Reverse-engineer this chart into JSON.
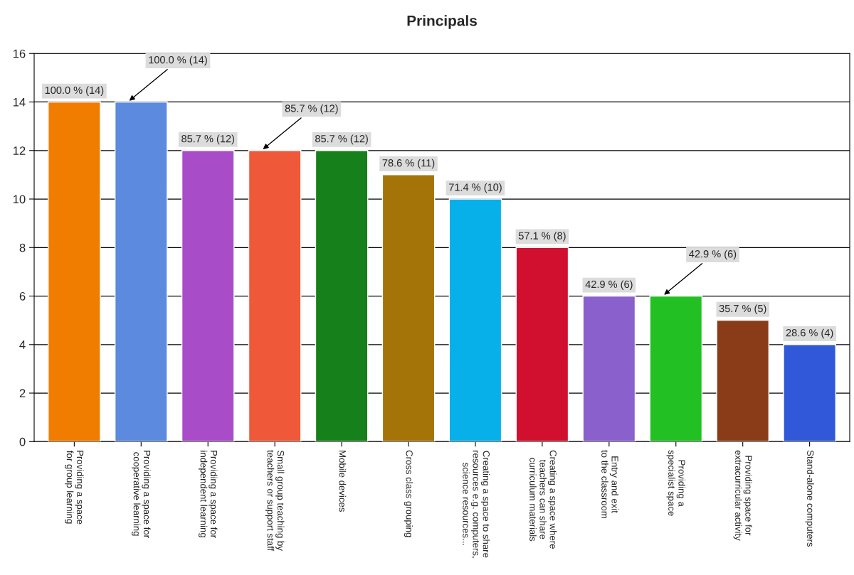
{
  "chart_data": {
    "type": "bar",
    "title": "Principals",
    "categories": [
      "Providing a space\nfor group learning",
      "Providing a space for\ncooperative learning",
      "Providing a space for\nindependent learning",
      "Small group teaching by\nteachers or support staff",
      "Mobile devices",
      "Cross class grouping",
      "Creating a space to share\nresources e.g. computers,\nscience resources...",
      "Creating a space where\nteachers can share\ncurriculum materials",
      "Entry and exit\nto the classroom",
      "Providing a\nspecialist space",
      "Providing space for\nextracurricular activity",
      "Stand-alone computers"
    ],
    "values": [
      14,
      14,
      12,
      12,
      12,
      11,
      10,
      8,
      6,
      6,
      5,
      4
    ],
    "colors": [
      "#f07c00",
      "#5b8ade",
      "#a84cc8",
      "#ef5838",
      "#16801a",
      "#a47408",
      "#08b0ea",
      "#d0102e",
      "#8a60cc",
      "#22c022",
      "#8a3c18",
      "#3058d8"
    ],
    "value_labels": [
      "100.0 % (14)",
      "100.0 % (14)",
      "85.7 % (12)",
      "85.7 % (12)",
      "85.7 % (12)",
      "78.6 % (11)",
      "71.4 % (10)",
      "57.1 % (8)",
      "42.9 % (6)",
      "42.9 % (6)",
      "35.7 % (5)",
      "28.6 % (4)"
    ],
    "ylim": [
      0,
      16
    ],
    "yticks": [
      0,
      2,
      4,
      6,
      8,
      10,
      12,
      14,
      16
    ],
    "grid": "y"
  }
}
